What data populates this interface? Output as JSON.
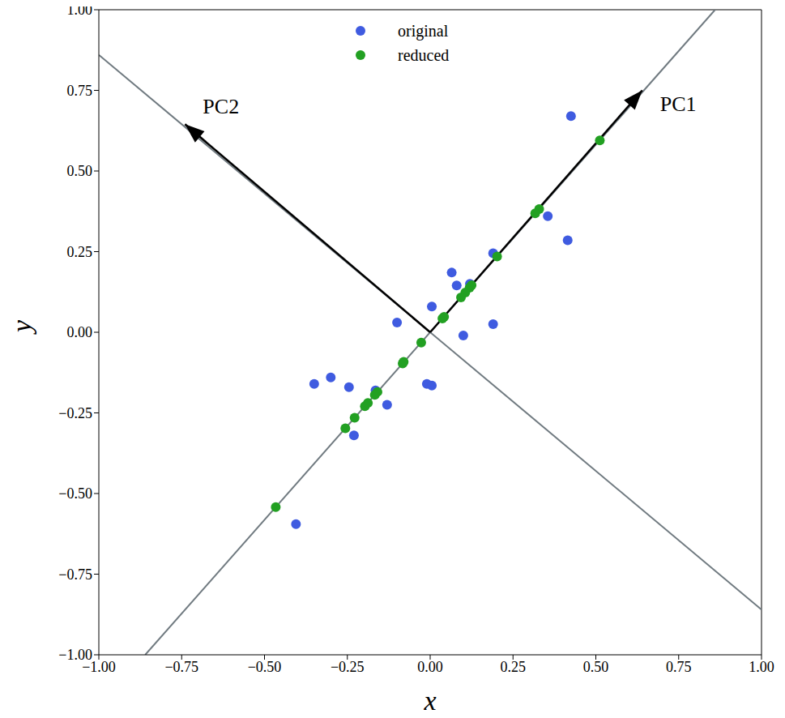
{
  "chart_data": {
    "type": "scatter",
    "xlabel": "x",
    "ylabel": "y",
    "xlim": [
      -1,
      1
    ],
    "ylim": [
      -1,
      1
    ],
    "xticks": [
      {
        "value": -1,
        "label": "−1.00"
      },
      {
        "value": -0.75,
        "label": "−0.75"
      },
      {
        "value": -0.5,
        "label": "−0.50"
      },
      {
        "value": -0.25,
        "label": "−0.25"
      },
      {
        "value": 0,
        "label": "0.00"
      },
      {
        "value": 0.25,
        "label": "0.25"
      },
      {
        "value": 0.5,
        "label": "0.50"
      },
      {
        "value": 0.75,
        "label": "0.75"
      },
      {
        "value": 1,
        "label": "1.00"
      }
    ],
    "yticks": [
      {
        "value": -1,
        "label": "−1.00"
      },
      {
        "value": -0.75,
        "label": "−0.75"
      },
      {
        "value": -0.5,
        "label": "−0.50"
      },
      {
        "value": -0.25,
        "label": "−0.25"
      },
      {
        "value": 0,
        "label": "0.00"
      },
      {
        "value": 0.25,
        "label": "0.25"
      },
      {
        "value": 0.5,
        "label": "0.50"
      },
      {
        "value": 0.75,
        "label": "0.75"
      },
      {
        "value": 1,
        "label": "1.00"
      }
    ],
    "grid": false,
    "legend": "top",
    "series": [
      {
        "name": "original",
        "color": "#3f5be0",
        "marker": "circle",
        "x": [
          0.425,
          0.355,
          0.415,
          0.19,
          0.065,
          0.08,
          0.12,
          0.005,
          -0.1,
          0.1,
          0.19,
          -0.01,
          0.005,
          -0.35,
          -0.3,
          -0.245,
          -0.165,
          -0.13,
          -0.23,
          -0.405
        ],
        "y": [
          0.67,
          0.36,
          0.285,
          0.245,
          0.185,
          0.145,
          0.15,
          0.08,
          0.03,
          -0.01,
          0.025,
          -0.16,
          -0.165,
          -0.16,
          -0.14,
          -0.17,
          -0.18,
          -0.225,
          -0.32,
          -0.595
        ]
      },
      {
        "name": "reduced",
        "color": "#22a022",
        "marker": "circle",
        "x": [
          0.512,
          0.329,
          0.317,
          0.202,
          0.119,
          0.106,
          0.125,
          0.042,
          -0.027,
          0.037,
          0.093,
          -0.083,
          -0.08,
          -0.228,
          -0.197,
          -0.188,
          -0.159,
          -0.167,
          -0.256,
          -0.466
        ],
        "y": [
          0.595,
          0.382,
          0.369,
          0.235,
          0.138,
          0.123,
          0.146,
          0.048,
          -0.032,
          0.043,
          0.108,
          -0.097,
          -0.092,
          -0.265,
          -0.229,
          -0.219,
          -0.185,
          -0.194,
          -0.298,
          -0.542
        ]
      }
    ],
    "components": [
      {
        "name": "PC1",
        "line": {
          "x": [
            -0.86,
            0.86
          ],
          "y": [
            -1,
            1
          ]
        },
        "arrow": {
          "x": 0.64,
          "y": 0.75
        }
      },
      {
        "name": "PC2",
        "line": {
          "x": [
            -1,
            1
          ],
          "y": [
            0.86,
            -0.86
          ]
        },
        "arrow": {
          "x": -0.74,
          "y": 0.645
        }
      }
    ]
  }
}
